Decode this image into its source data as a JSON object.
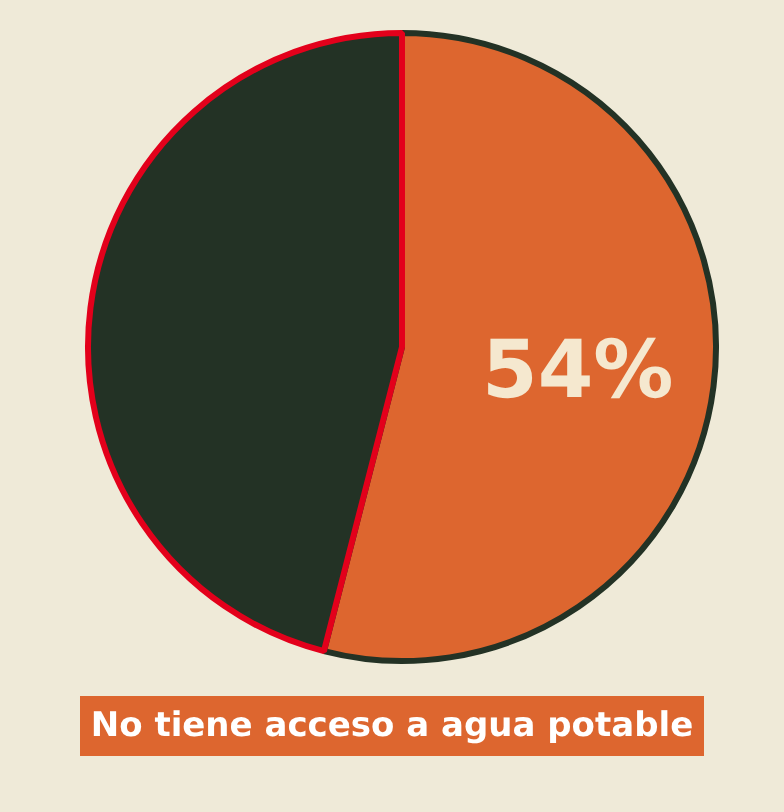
{
  "chart_data": {
    "type": "pie",
    "categories": [
      null,
      null
    ],
    "values": [
      54,
      46
    ],
    "colors": [
      "#dd662f",
      "#233225"
    ],
    "value_labels": [
      "54%",
      null
    ],
    "annotations": [
      "No tiene acceso a agua potable"
    ]
  }
}
